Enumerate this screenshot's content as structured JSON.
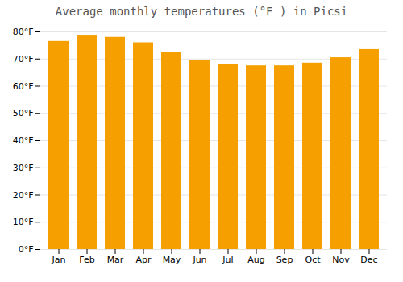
{
  "chart_data": {
    "type": "bar",
    "title": "Average monthly temperatures (°F ) in Picsi",
    "categories": [
      "Jan",
      "Feb",
      "Mar",
      "Apr",
      "May",
      "Jun",
      "Jul",
      "Aug",
      "Sep",
      "Oct",
      "Nov",
      "Dec"
    ],
    "values": [
      76.5,
      78.5,
      78.0,
      76.0,
      72.5,
      69.5,
      68.0,
      67.5,
      67.5,
      68.5,
      70.5,
      73.5
    ],
    "color": "#F5A000",
    "ylim": [
      0,
      80
    ],
    "yticks": [
      {
        "value": 0,
        "label": "0°F"
      },
      {
        "value": 10,
        "label": "10°F"
      },
      {
        "value": 20,
        "label": "20°F"
      },
      {
        "value": 30,
        "label": "30°F"
      },
      {
        "value": 40,
        "label": "40°F"
      },
      {
        "value": 50,
        "label": "50°F"
      },
      {
        "value": 60,
        "label": "60°F"
      },
      {
        "value": 70,
        "label": "70°F"
      },
      {
        "value": 80,
        "label": "80°F"
      }
    ],
    "grid": true
  }
}
